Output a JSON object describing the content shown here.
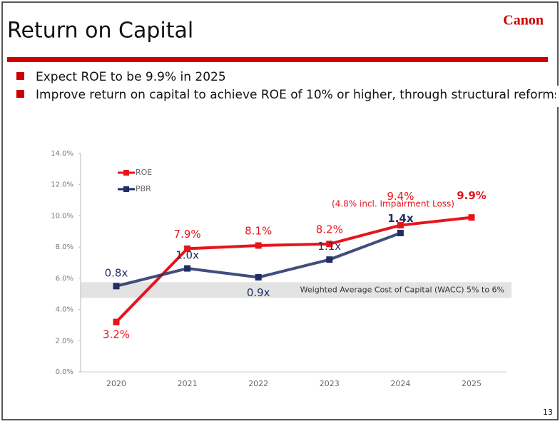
{
  "slide": {
    "title": "Return on Capital",
    "logo": "Canon",
    "bullets": [
      "Expect ROE to be 9.9% in 2025",
      "Improve return on capital to achieve ROE of 10% or higher, through structural reforms"
    ],
    "page_number": "13"
  },
  "chart_data": {
    "type": "line",
    "categories": [
      "2020",
      "2021",
      "2022",
      "2023",
      "2024",
      "2025"
    ],
    "series": [
      {
        "name": "ROE",
        "color": "#e8141b",
        "values": [
          3.2,
          7.9,
          8.1,
          8.2,
          9.4,
          9.9
        ],
        "value_labels": [
          "3.2%",
          "7.9%",
          "8.1%",
          "8.2%",
          "9.4%",
          "9.9%"
        ]
      },
      {
        "name": "PBR",
        "color": "#1f2f66",
        "axis": "y2",
        "values": [
          0.8,
          1.0,
          0.9,
          1.1,
          1.4,
          null
        ],
        "value_labels": [
          "0.8x",
          "1.0x",
          "0.9x",
          "1.1x",
          "1.4x",
          null
        ]
      }
    ],
    "ylim": [
      0,
      14
    ],
    "yticks": [
      {
        "value": 0,
        "label": "0.0%"
      },
      {
        "value": 2,
        "label": "2.0%"
      },
      {
        "value": 4,
        "label": "4.0%"
      },
      {
        "value": 6,
        "label": "6.0%"
      },
      {
        "value": 8,
        "label": "8.0%"
      },
      {
        "value": 10,
        "label": "10.0%"
      },
      {
        "value": 12,
        "label": "12.0%"
      },
      {
        "value": 14,
        "label": "14.0%"
      }
    ],
    "y2lim": [
      -0.17,
      2.3
    ],
    "annotation": "(4.8% incl. Impairment Loss)",
    "band": {
      "label": "Weighted Average Cost of Capital (WACC)  5% to 6%",
      "range": [
        4.75,
        5.75
      ]
    },
    "legend": "upper left"
  }
}
